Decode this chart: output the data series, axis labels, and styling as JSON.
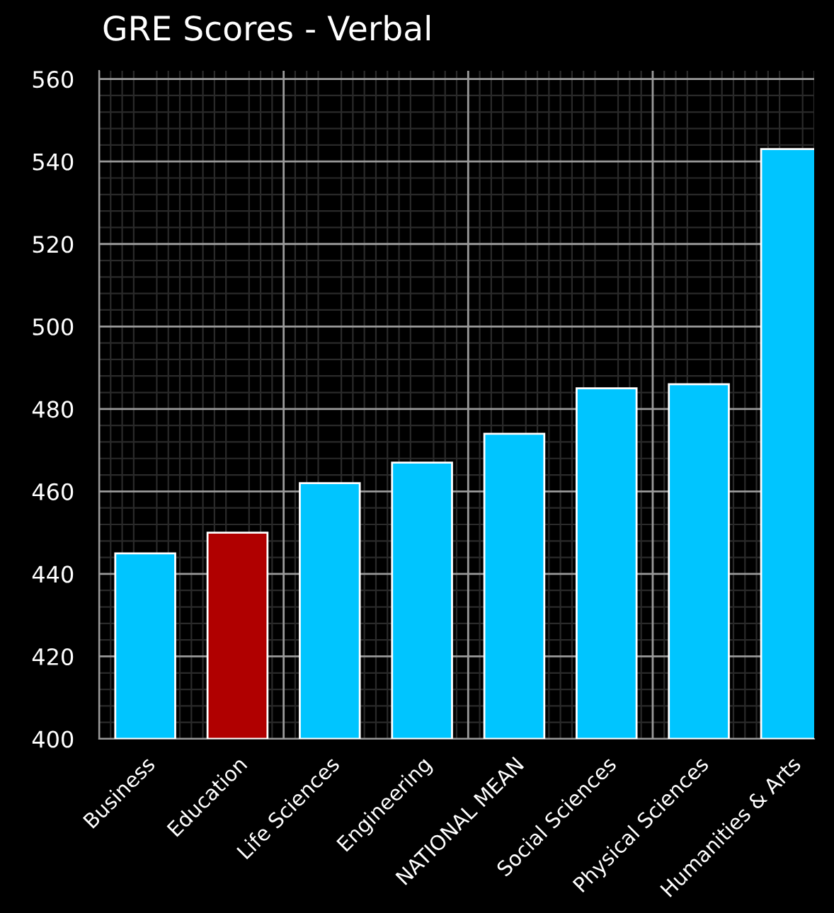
{
  "chart_data": {
    "type": "bar",
    "title": "GRE Scores - Verbal",
    "categories": [
      "Business",
      "Education",
      "Life Sciences",
      "Engineering",
      "NATIONAL MEAN",
      "Social Sciences",
      "Physical Sciences",
      "Humanities & Arts"
    ],
    "values": [
      445,
      450,
      462,
      467,
      474,
      485,
      486,
      543
    ],
    "colors": [
      "#00c5ff",
      "#b00000",
      "#00c5ff",
      "#00c5ff",
      "#00c5ff",
      "#00c5ff",
      "#00c5ff",
      "#00c5ff"
    ],
    "ylim": [
      400,
      562
    ],
    "yticks": [
      400,
      420,
      440,
      460,
      480,
      500,
      520,
      540,
      560
    ],
    "grid": true
  }
}
